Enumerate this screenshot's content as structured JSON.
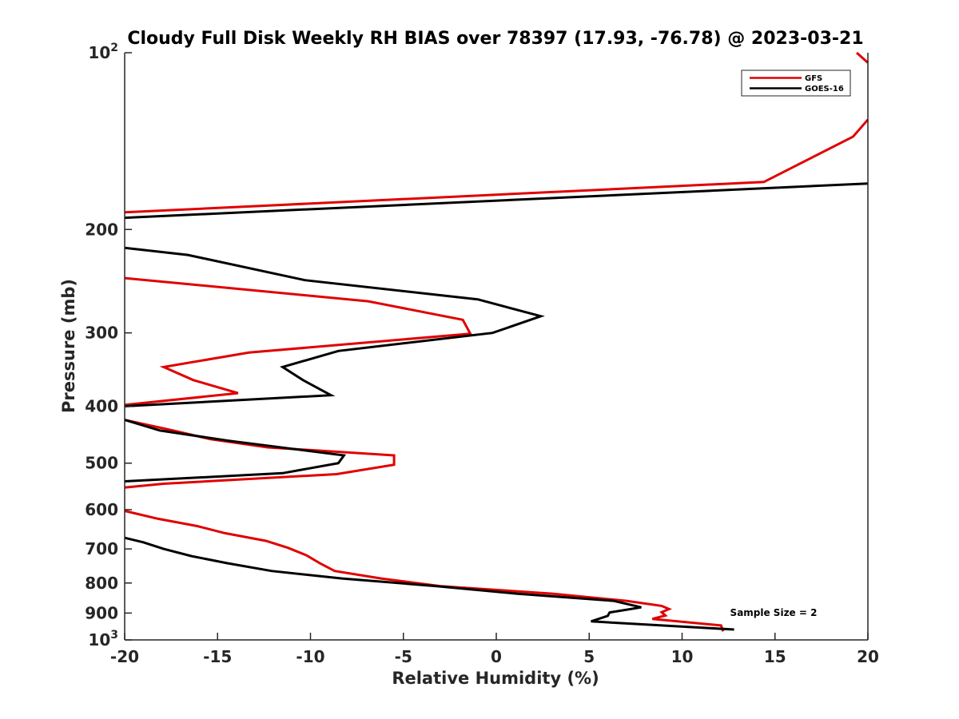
{
  "chart_data": {
    "type": "line",
    "title": "Cloudy Full Disk Weekly RH BIAS over 78397 (17.93, -76.78) @ 2023-03-21",
    "xlabel": "Relative Humidity (%)",
    "ylabel": "Pressure (mb)",
    "xlim": [
      -20,
      20
    ],
    "ylim": [
      100,
      1000
    ],
    "y_scale": "log",
    "y_reversed": false,
    "xticks": [
      -20,
      -15,
      -10,
      -5,
      0,
      5,
      10,
      15,
      20
    ],
    "xtick_labels": [
      "-20",
      "-15",
      "-10",
      "-5",
      "0",
      "5",
      "10",
      "15",
      "20"
    ],
    "yticks": [
      {
        "value": 100,
        "base": "10",
        "exp": "2"
      },
      {
        "value": 200,
        "label": "200"
      },
      {
        "value": 300,
        "label": "300"
      },
      {
        "value": 400,
        "label": "400"
      },
      {
        "value": 500,
        "label": "500"
      },
      {
        "value": 600,
        "label": "600"
      },
      {
        "value": 700,
        "label": "700"
      },
      {
        "value": 800,
        "label": "800"
      },
      {
        "value": 900,
        "label": "900"
      },
      {
        "value": 1000,
        "base": "10",
        "exp": "3"
      }
    ],
    "grid": false,
    "legend": {
      "position": "top-right",
      "entries": [
        "GFS",
        "GOES-16"
      ]
    },
    "annotation": "Sample Size = 2",
    "series": [
      {
        "name": "GFS",
        "color": "#e00000",
        "segments": [
          [
            [
              19.4,
              100
            ],
            [
              20,
              104
            ]
          ],
          [
            [
              20,
              130
            ],
            [
              19.2,
              139
            ],
            [
              14.4,
              166
            ],
            [
              -20,
              187
            ]
          ],
          [
            [
              -20,
              242
            ],
            [
              -6.9,
              265
            ],
            [
              -1.8,
              285
            ],
            [
              -1.4,
              301
            ],
            [
              -13.3,
              324
            ],
            [
              -17.9,
              343
            ],
            [
              -16.3,
              361
            ],
            [
              -13.9,
              380
            ],
            [
              -20,
              398
            ]
          ],
          [
            [
              -20,
              422
            ],
            [
              -17.4,
              440
            ],
            [
              -15.4,
              455
            ],
            [
              -12.3,
              470
            ],
            [
              -5.5,
              485
            ],
            [
              -5.5,
              503
            ],
            [
              -8.6,
              522
            ],
            [
              -17.9,
              542
            ],
            [
              -20,
              550
            ]
          ],
          [
            [
              -20,
              603
            ],
            [
              -18.2,
              622
            ],
            [
              -16.1,
              640
            ],
            [
              -14.6,
              658
            ],
            [
              -12.4,
              678
            ],
            [
              -11.2,
              697
            ],
            [
              -10.2,
              718
            ],
            [
              -9.5,
              740
            ],
            [
              -8.7,
              763
            ],
            [
              -6.2,
              786
            ],
            [
              -3.0,
              810
            ],
            [
              3.0,
              834
            ],
            [
              7.0,
              858
            ],
            [
              8.9,
              875
            ],
            [
              9.3,
              886
            ],
            [
              8.9,
              897
            ],
            [
              9.1,
              909
            ],
            [
              8.4,
              921
            ],
            [
              12.1,
              945
            ],
            [
              12.2,
              967
            ]
          ]
        ]
      },
      {
        "name": "GOES-16",
        "color": "#000000",
        "segments": [
          [
            [
              20,
              167
            ],
            [
              -20,
              191
            ]
          ],
          [
            [
              -20,
              215
            ],
            [
              -16.6,
              221
            ],
            [
              -10.3,
              244
            ],
            [
              -1.0,
              263
            ],
            [
              2.4,
              281
            ],
            [
              -0.2,
              300
            ],
            [
              -8.5,
              322
            ],
            [
              -11.5,
              343
            ],
            [
              -10.4,
              361
            ],
            [
              -8.9,
              383
            ],
            [
              -20,
              400
            ]
          ],
          [
            [
              -20,
              422
            ],
            [
              -18.1,
              440
            ],
            [
              -14.4,
              458
            ],
            [
              -8.2,
              485
            ],
            [
              -8.5,
              500
            ],
            [
              -11.5,
              520
            ],
            [
              -20,
              537
            ]
          ],
          [
            [
              -20,
              670
            ],
            [
              -19.0,
              682
            ],
            [
              -17.9,
              700
            ],
            [
              -16.4,
              720
            ],
            [
              -14.5,
              740
            ],
            [
              -12.1,
              763
            ],
            [
              -8.3,
              786
            ],
            [
              -3.2,
              810
            ],
            [
              1.1,
              834
            ],
            [
              6.3,
              858
            ],
            [
              7.8,
              880
            ],
            [
              6.1,
              898
            ],
            [
              6.0,
              910
            ],
            [
              5.1,
              930
            ],
            [
              12.8,
              960
            ]
          ]
        ]
      }
    ]
  }
}
